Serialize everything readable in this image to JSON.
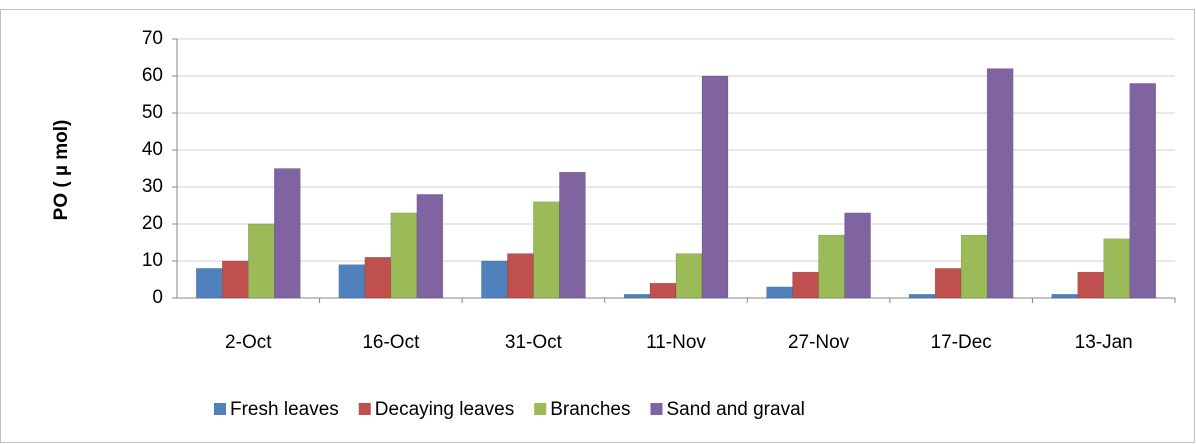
{
  "chart_data": {
    "type": "bar",
    "y_label": "PO  ( µ mol)",
    "categories": [
      "2-Oct",
      "16-Oct",
      "31-Oct",
      "11-Nov",
      "27-Nov",
      "17-Dec",
      "13-Jan"
    ],
    "series": [
      {
        "name": "Fresh leaves",
        "color": "#4f81bd",
        "values": [
          8,
          9,
          10,
          1,
          3,
          1,
          1
        ]
      },
      {
        "name": "Decaying leaves",
        "color": "#c0504d",
        "values": [
          10,
          11,
          12,
          4,
          7,
          8,
          7
        ]
      },
      {
        "name": "Branches",
        "color": "#9bbb59",
        "values": [
          20,
          23,
          26,
          12,
          17,
          17,
          16
        ]
      },
      {
        "name": "Sand and graval",
        "color": "#8064a2",
        "values": [
          35,
          28,
          34,
          60,
          23,
          62,
          58
        ]
      }
    ],
    "ylim": [
      0,
      70
    ],
    "yticks": [
      0,
      10,
      20,
      30,
      40,
      50,
      60,
      70
    ],
    "grid": true,
    "legend": "bottom"
  }
}
